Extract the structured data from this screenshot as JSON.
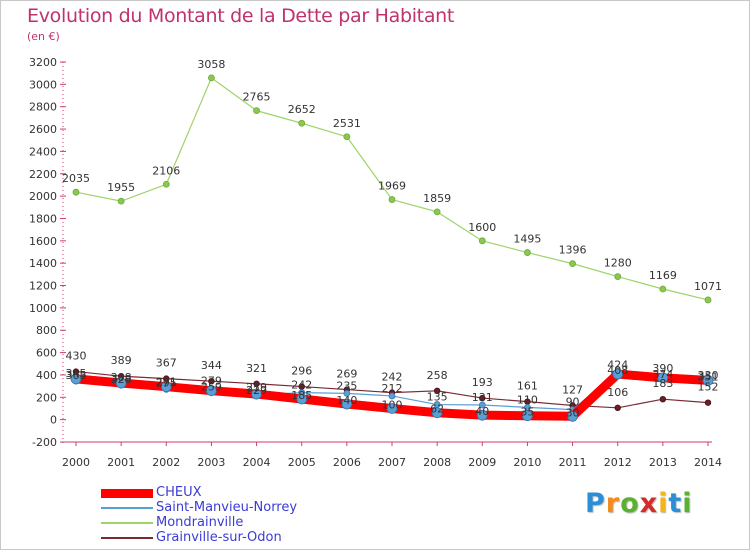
{
  "header": {
    "title": "Evolution du Montant de la Dette par Habitant",
    "unit": "(en €)"
  },
  "logo": {
    "letters": [
      "P",
      "r",
      "o",
      "x",
      "i",
      "t",
      "i"
    ],
    "colors": [
      "#2a8fd6",
      "#f28c1e",
      "#5bb02f",
      "#d62a2a",
      "#f2b51e",
      "#2a8fd6",
      "#5bb02f"
    ]
  },
  "chart_data": {
    "type": "line",
    "categories": [
      "2000",
      "2001",
      "2002",
      "2003",
      "2004",
      "2005",
      "2006",
      "2007",
      "2008",
      "2009",
      "2010",
      "2011",
      "2012",
      "2013",
      "2014"
    ],
    "ylim": [
      -200,
      3200
    ],
    "yticks": [
      "-200",
      "0",
      "200",
      "400",
      "600",
      "800",
      "1000",
      "1200",
      "1400",
      "1600",
      "1800",
      "2000",
      "2200",
      "2400",
      "2600",
      "2800",
      "3000",
      "3200"
    ],
    "grid": false,
    "legend_position": "bottom-left",
    "series": [
      {
        "name": "Mondrainville",
        "color": "#9ed46a",
        "values": [
          2035,
          1955,
          2106,
          3058,
          2765,
          2652,
          2531,
          1969,
          1859,
          1600,
          1495,
          1396,
          1280,
          1169,
          1071
        ],
        "labels": [
          "2035",
          "1955",
          "2106",
          "3058",
          "2765",
          "2652",
          "2531",
          "1969",
          "1859",
          "1600",
          "1495",
          "1396",
          "1280",
          "1169",
          "1071"
        ]
      },
      {
        "name": "Grainville-sur-Odon",
        "color": "#7a2a32",
        "values": [
          430,
          389,
          367,
          344,
          321,
          296,
          269,
          242,
          258,
          193,
          161,
          127,
          106,
          183,
          152
        ],
        "labels": [
          "430",
          "389",
          "367",
          "344",
          "321",
          "296",
          "269",
          "242",
          "258",
          "193",
          "161",
          "127",
          "106",
          "183",
          "152"
        ]
      },
      {
        "name": "Saint-Manvieu-Norrey",
        "color": "#5a9fd4",
        "values": [
          345,
          308,
          271,
          279,
          219,
          242,
          235,
          212,
          135,
          131,
          110,
          90,
          424,
          390,
          330
        ],
        "labels": [
          "345",
          "308",
          "271",
          "279",
          "219",
          "242",
          "235",
          "212",
          "135",
          "131",
          "110",
          "90",
          "424",
          "390",
          "330"
        ]
      },
      {
        "name": "CHEUX",
        "color": "#ff0000",
        "values": [
          365,
          328,
          295,
          259,
          229,
          185,
          140,
          100,
          62,
          40,
          35,
          30,
          408,
          374,
          351
        ],
        "labels": [
          "365",
          "328",
          "295",
          "259",
          "229",
          "185",
          "140",
          "100",
          "62",
          "40",
          "35",
          "30",
          "408",
          "374",
          "351"
        ]
      }
    ],
    "legend_order": [
      "CHEUX",
      "Saint-Manvieu-Norrey",
      "Mondrainville",
      "Grainville-sur-Odon"
    ]
  }
}
